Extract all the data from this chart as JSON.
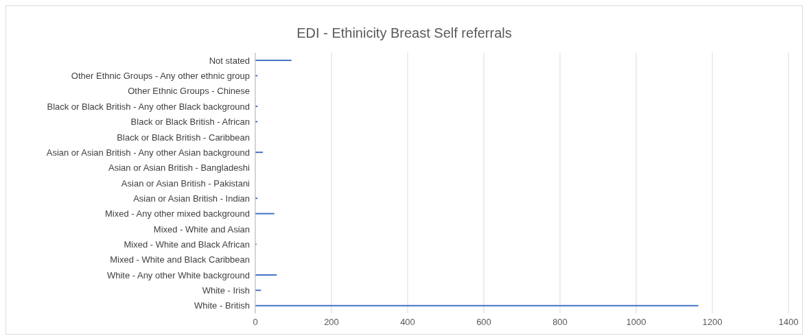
{
  "chart_data": {
    "type": "bar",
    "orientation": "horizontal",
    "title": "EDI - Ethinicity Breast Self referrals",
    "categories": [
      "Not stated",
      "Other Ethnic Groups - Any other ethnic group",
      "Other Ethnic Groups - Chinese",
      "Black or Black British - Any other Black background",
      "Black or Black British - African",
      "Black or Black British - Caribbean",
      "Asian or Asian British - Any other Asian background",
      "Asian or Asian British - Bangladeshi",
      "Asian or Asian British - Pakistani",
      "Asian or Asian British - Indian",
      "Mixed - Any other mixed background",
      "Mixed - White and Asian",
      "Mixed - White and Black African",
      "Mixed - White and Black Caribbean",
      "White - Any other White background",
      "White - Irish",
      "White - British"
    ],
    "values": [
      95,
      6,
      0,
      6,
      6,
      0,
      20,
      0,
      0,
      6,
      50,
      0,
      3,
      0,
      56,
      15,
      1163
    ],
    "color": "#4472c4",
    "xlim": [
      0,
      1400
    ],
    "xticks": [
      0,
      200,
      400,
      600,
      800,
      1000,
      1200,
      1400
    ],
    "grid": "x"
  }
}
